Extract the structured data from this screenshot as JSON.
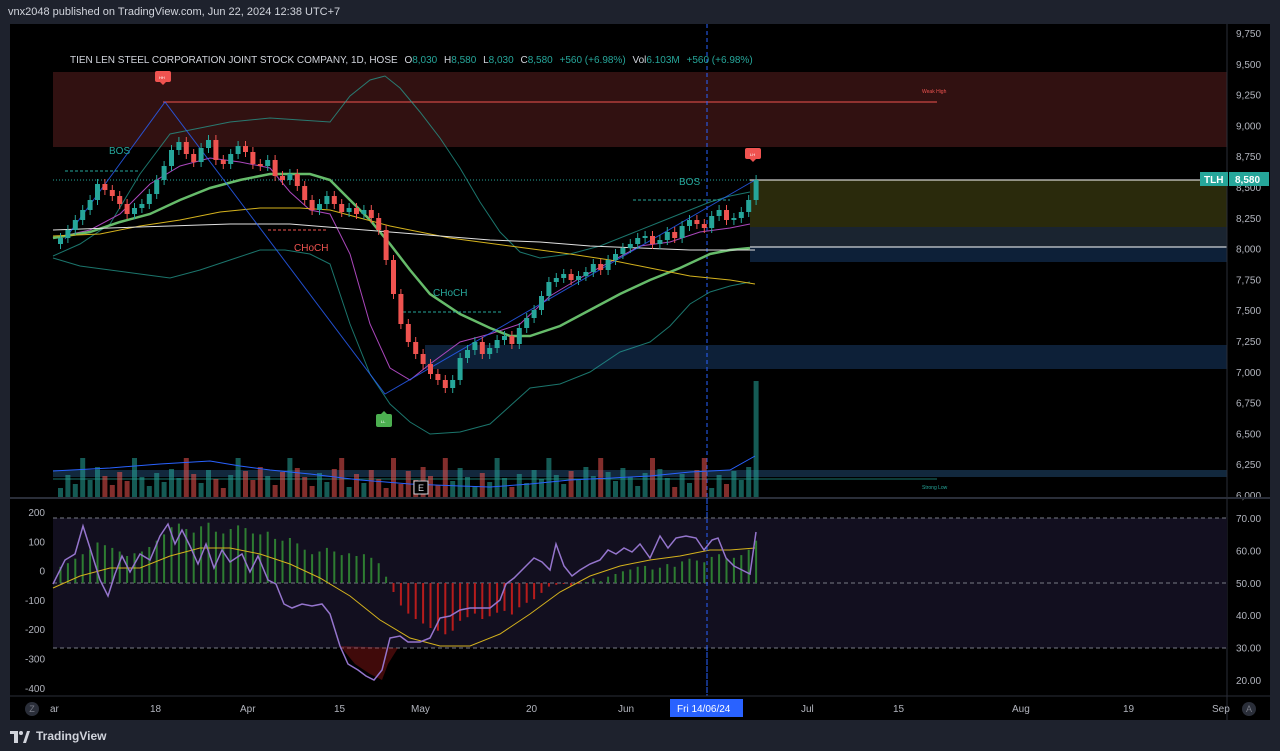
{
  "header": {
    "published": "vnx2048 published on TradingView.com, Jun 22, 2024 12:38 UTC+7"
  },
  "legend": {
    "symbol": "TIEN LEN STEEL CORPORATION JOINT STOCK COMPANY, 1D, HOSE",
    "o_label": "O",
    "o": "8,030",
    "h_label": "H",
    "h": "8,580",
    "l_label": "L",
    "l": "8,030",
    "c_label": "C",
    "c": "8,580",
    "change": "+560 (+6.98%)",
    "vol_label": "Vol",
    "vol": "6.103M",
    "vol_change": "+560 (+6.98%)"
  },
  "price_axis": [
    "9,750",
    "9,500",
    "9,250",
    "9,000",
    "8,750",
    "8,500",
    "8,250",
    "8,000",
    "7,750",
    "7,500",
    "7,250",
    "7,000",
    "6,750",
    "6,500",
    "6,250",
    "6,000"
  ],
  "price_tag": {
    "ticker": "TLH",
    "price": "8,580"
  },
  "osc_axis_left": [
    "200",
    "100",
    "0",
    "-100",
    "-200",
    "-300",
    "-400"
  ],
  "osc_axis_right": [
    "70.00",
    "60.00",
    "50.00",
    "40.00",
    "30.00",
    "20.00"
  ],
  "time_axis": [
    "ar",
    "18",
    "Apr",
    "15",
    "May",
    "20",
    "Jun",
    "Jul",
    "15",
    "Aug",
    "19",
    "Sep"
  ],
  "crosshair_date": "Fri 14/06/24",
  "annotations": {
    "bos_1": "BOS",
    "bos_2": "BOS",
    "choch_1": "CHoCH",
    "choch_2": "CHoCH",
    "weak_high": "Weak High",
    "strong_low": "Strong Low",
    "hh": "HH",
    "lh": "LH",
    "ll": "LL",
    "earnings": "E"
  },
  "corner": {
    "z": "Z",
    "a": "A"
  },
  "footer": {
    "brand": "TradingView"
  },
  "colors": {
    "up": "#26a69a",
    "down": "#ef5350",
    "accent": "#2962ff",
    "rsi": "#9575cd"
  }
}
